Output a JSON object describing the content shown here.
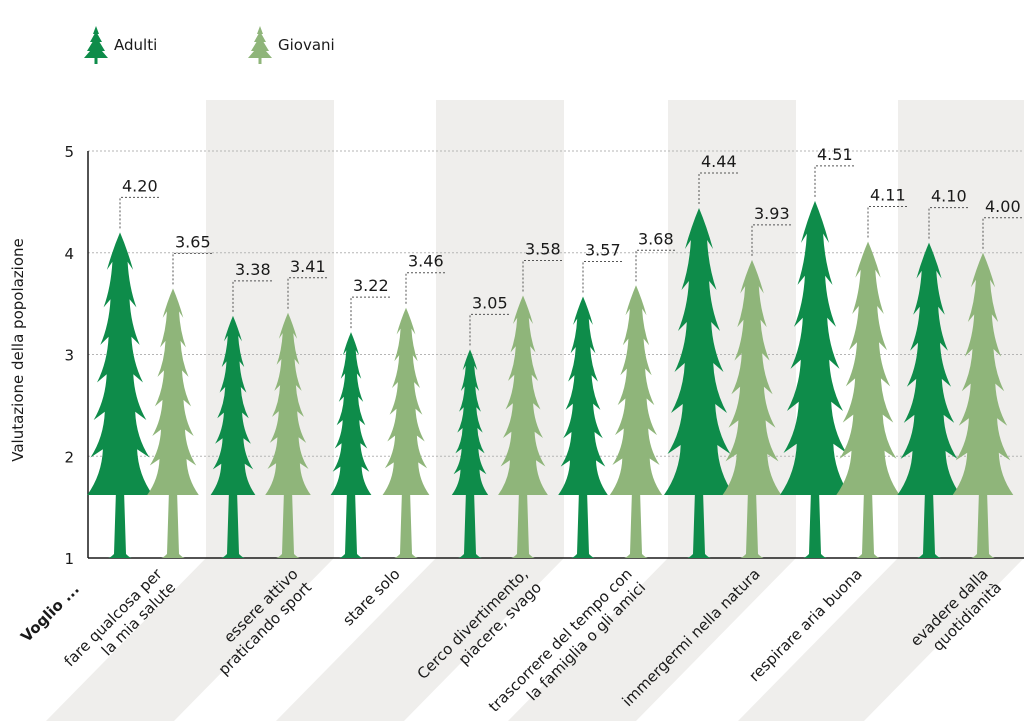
{
  "chart_data": {
    "type": "bar",
    "ylabel": "Valutazione della popolazione",
    "ylim": [
      1,
      5
    ],
    "yticks": [
      "1",
      "2",
      "3",
      "4",
      "5"
    ],
    "category_prefix": "Voglio ...",
    "categories": [
      [
        "fare qualcosa per",
        "la mia salute"
      ],
      [
        "essere attivo",
        "praticando sport"
      ],
      [
        "stare solo"
      ],
      [
        "Cerco divertimento,",
        "piacere, svago"
      ],
      [
        "trascorrere del tempo con",
        "la famiglia o gli amici"
      ],
      [
        "immergermi nella natura"
      ],
      [
        "respirare aria buona"
      ],
      [
        "evadere dalla",
        "quotidianità"
      ]
    ],
    "series": [
      {
        "name": "Adulti",
        "color": "#0e8c4a",
        "values": [
          4.2,
          3.38,
          3.22,
          3.05,
          3.57,
          4.44,
          4.51,
          4.1
        ],
        "labels": [
          "4.20",
          "3.38",
          "3.22",
          "3.05",
          "3.57",
          "4.44",
          "4.51",
          "4.10"
        ]
      },
      {
        "name": "Giovani",
        "color": "#8fb57a",
        "values": [
          3.65,
          3.41,
          3.46,
          3.58,
          3.68,
          3.93,
          4.11,
          4.0
        ],
        "labels": [
          "3.65",
          "3.41",
          "3.46",
          "3.58",
          "3.68",
          "3.93",
          "4.11",
          "4.00"
        ]
      }
    ],
    "grid": true,
    "legend_position": "top-left",
    "band_color": "#efeeec"
  }
}
